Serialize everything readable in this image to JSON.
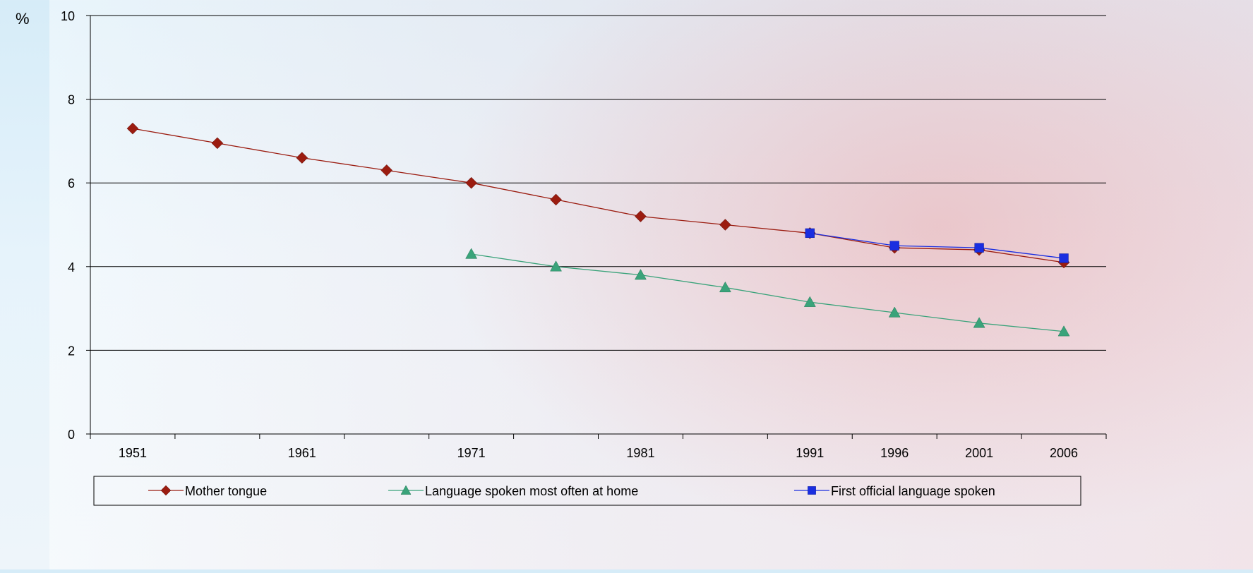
{
  "chart_data": {
    "type": "line",
    "y_unit": "%",
    "x": [
      "1951",
      "1956",
      "1961",
      "1966",
      "1971",
      "1976",
      "1981",
      "1986",
      "1991",
      "1996",
      "2001",
      "2006"
    ],
    "x_tick_labels": [
      "1951",
      "",
      "1961",
      "",
      "1971",
      "",
      "1981",
      "",
      "1991",
      "1996",
      "2001",
      "2006"
    ],
    "ylim": [
      0,
      10
    ],
    "y_ticks": [
      0,
      2,
      4,
      6,
      8,
      10
    ],
    "grid": true,
    "legend_position": "bottom",
    "series": [
      {
        "name": "Mother tongue",
        "marker": "diamond",
        "color": "#9b1c10",
        "values": [
          7.3,
          6.95,
          6.6,
          6.3,
          6.0,
          5.6,
          5.2,
          5.0,
          4.8,
          4.45,
          4.4,
          4.1
        ]
      },
      {
        "name": "Language spoken most often at home",
        "marker": "triangle",
        "color": "#3aa37a",
        "values": [
          null,
          null,
          null,
          null,
          4.3,
          4.0,
          3.8,
          3.5,
          3.15,
          2.9,
          2.65,
          2.45
        ]
      },
      {
        "name": "First official language spoken",
        "marker": "square",
        "color": "#1a2ee0",
        "values": [
          null,
          null,
          null,
          null,
          null,
          null,
          null,
          null,
          4.8,
          4.5,
          4.45,
          4.2
        ]
      }
    ]
  }
}
